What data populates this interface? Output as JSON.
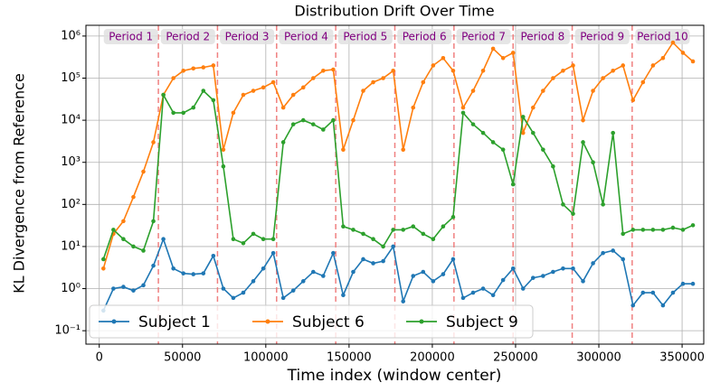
{
  "chart_data": {
    "type": "line",
    "title": "Distribution Drift Over Time",
    "xlabel": "Time index (window center)",
    "ylabel": "KL Divergence from Reference",
    "log_y": true,
    "grid": true,
    "legend": "lower left",
    "xlim": [
      -8000,
      363000
    ],
    "xticks": [
      0,
      50000,
      100000,
      150000,
      200000,
      250000,
      300000,
      350000
    ],
    "ylim": [
      0.048,
      1800000
    ],
    "yticks": [
      {
        "value": 0.1,
        "label": "10⁻¹"
      },
      {
        "value": 1,
        "label": "10⁰"
      },
      {
        "value": 10,
        "label": "10¹"
      },
      {
        "value": 100,
        "label": "10²"
      },
      {
        "value": 1000,
        "label": "10³"
      },
      {
        "value": 10000,
        "label": "10⁴"
      },
      {
        "value": 100000,
        "label": "10⁵"
      },
      {
        "value": 1000000,
        "label": "10⁶"
      }
    ],
    "boundaries": [
      35500,
      71000,
      106500,
      142000,
      177500,
      213000,
      248500,
      284000,
      320000
    ],
    "boundary_color": "#f08080",
    "period_labels": [
      "Period 1",
      "Period 2",
      "Period 3",
      "Period 4",
      "Period 5",
      "Period 6",
      "Period 7",
      "Period 8",
      "Period 9",
      "Period 10"
    ],
    "x": [
      2500,
      8500,
      14500,
      20500,
      26500,
      32500,
      38500,
      44500,
      50500,
      56500,
      62500,
      68500,
      74500,
      80500,
      86500,
      92500,
      98500,
      104500,
      110500,
      116500,
      122500,
      128500,
      134500,
      140500,
      146500,
      152500,
      158500,
      164500,
      170500,
      176500,
      182500,
      188500,
      194500,
      200500,
      206500,
      212500,
      218500,
      224500,
      230500,
      236500,
      242500,
      248500,
      254500,
      260500,
      266500,
      272500,
      278500,
      284500,
      290500,
      296500,
      302500,
      308500,
      314500,
      320500,
      326500,
      332500,
      338500,
      344500,
      350500,
      356500
    ],
    "series": [
      {
        "name": "Subject 1",
        "color": "#1f77b4",
        "values": [
          0.3,
          1.0,
          1.1,
          0.9,
          1.2,
          3.5,
          15,
          3,
          2.3,
          2.2,
          2.3,
          6,
          1.0,
          0.6,
          0.8,
          1.5,
          3,
          7,
          0.6,
          0.9,
          1.5,
          2.5,
          2.0,
          7,
          0.7,
          2.5,
          5,
          4,
          4.5,
          10,
          0.5,
          2.0,
          2.5,
          1.5,
          2.2,
          5,
          0.6,
          0.8,
          1.0,
          0.7,
          1.6,
          3,
          1.0,
          1.8,
          2.0,
          2.5,
          3.0,
          3,
          1.5,
          4,
          7,
          8,
          5,
          0.4,
          0.8,
          0.8,
          0.4,
          0.8,
          1.3,
          1.3
        ]
      },
      {
        "name": "Subject 6",
        "color": "#ff7f0e",
        "values": [
          3,
          20,
          40,
          150,
          600,
          3000,
          40000,
          100000,
          150000,
          170000,
          180000,
          200000,
          2000,
          15000,
          40000,
          50000,
          60000,
          80000,
          20000,
          40000,
          60000,
          100000,
          150000,
          160000,
          2000,
          10000,
          50000,
          80000,
          100000,
          150000,
          2000,
          20000,
          80000,
          200000,
          300000,
          150000,
          20000,
          50000,
          150000,
          500000,
          300000,
          400000,
          5000,
          20000,
          50000,
          100000,
          150000,
          200000,
          10000,
          50000,
          100000,
          150000,
          200000,
          30000,
          80000,
          200000,
          300000,
          700000,
          400000,
          250000
        ]
      },
      {
        "name": "Subject 9",
        "color": "#2ca02c",
        "values": [
          5,
          25,
          15,
          10,
          8,
          40,
          40000,
          15000,
          15000,
          20000,
          50000,
          30000,
          800,
          15,
          12,
          20,
          15,
          15,
          3000,
          8000,
          10000,
          8000,
          6000,
          10000,
          30,
          25,
          20,
          15,
          10,
          25,
          25,
          30,
          20,
          15,
          30,
          50,
          15000,
          8000,
          5000,
          3000,
          2000,
          300,
          12000,
          5000,
          2000,
          800,
          100,
          60,
          3000,
          1000,
          100,
          5000,
          20,
          25,
          25,
          25,
          25,
          28,
          25,
          32
        ]
      }
    ]
  }
}
